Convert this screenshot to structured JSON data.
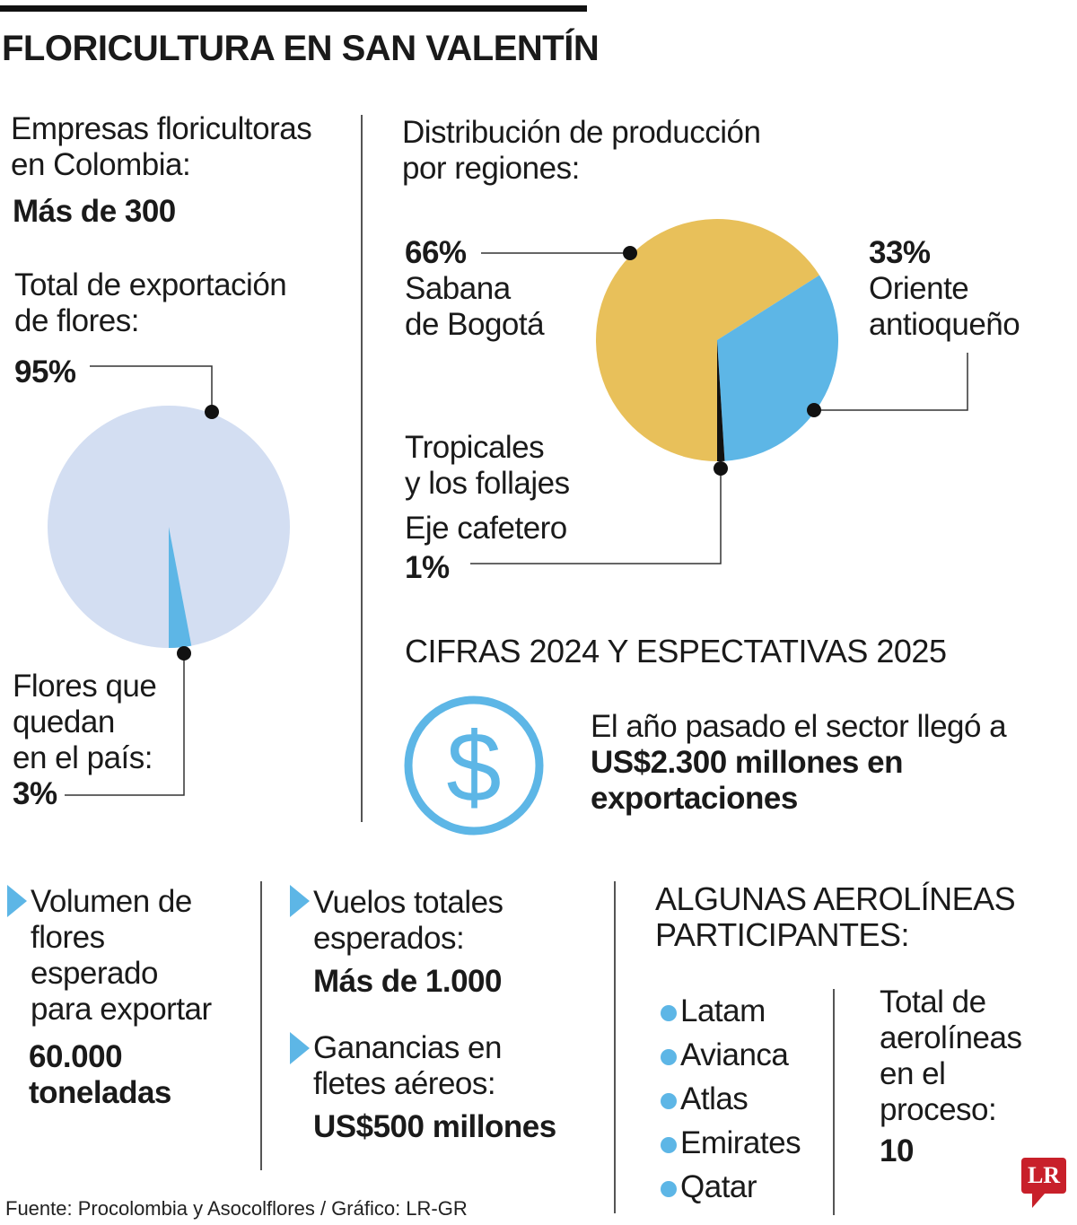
{
  "title": "FLORICULTURA EN SAN VALENTÍN",
  "companies": {
    "label_1": "Empresas floricultoras",
    "label_2": "en Colombia:",
    "value": "Más de 300"
  },
  "exports": {
    "label_1": "Total de exportación",
    "label_2": "de flores:",
    "export_pct": "95%",
    "remain_1": "Flores que",
    "remain_2": "quedan",
    "remain_3": "en el país:",
    "remain_pct": "3%"
  },
  "regions": {
    "label_1": "Distribución de producción",
    "label_2": "por regiones:",
    "sabana_pct": "66%",
    "sabana_1": "Sabana",
    "sabana_2": "de Bogotá",
    "oriente_pct": "33%",
    "oriente_1": "Oriente",
    "oriente_2": "antioqueño",
    "trop_1": "Tropicales",
    "trop_2": "y los follajes",
    "eje": "Eje cafetero",
    "eje_pct": "1%"
  },
  "cifras": {
    "heading": "CIFRAS 2024 Y ESPECTATIVAS 2025",
    "line_1": "El año pasado el sector llegó a",
    "line_2": "US$2.300 millones en",
    "line_3": "exportaciones",
    "icon": "dollar-circle-icon"
  },
  "volume": {
    "l1": "Volumen de",
    "l2": "flores",
    "l3": "esperado",
    "l4": "para exportar",
    "v1": "60.000",
    "v2": "toneladas"
  },
  "flights": {
    "l1": "Vuelos totales",
    "l2": "esperados:",
    "value": "Más de 1.000"
  },
  "freight": {
    "l1": "Ganancias en",
    "l2": "fletes aéreos:",
    "value": "US$500 millones"
  },
  "airlines": {
    "heading_1": "ALGUNAS AEROLÍNEAS",
    "heading_2": "PARTICIPANTES:",
    "items": [
      "Latam",
      "Avianca",
      "Atlas",
      "Emirates",
      "Qatar"
    ],
    "total_1": "Total de",
    "total_2": "aerolíneas",
    "total_3": "en el",
    "total_4": "proceso:",
    "total_value": "10"
  },
  "source": "Fuente: Procolombia y Asocolflores / Gráfico: LR-GR",
  "logo": "LR",
  "colors": {
    "light_blue": "#d3def2",
    "blue": "#5db6e6",
    "yellow": "#e8c05a",
    "black": "#111111",
    "logo_red": "#c8202a"
  },
  "chart_data": [
    {
      "type": "pie",
      "title": "Total de exportación de flores",
      "slices": [
        {
          "label": "Exportación",
          "value": 95,
          "color": "#d3def2"
        },
        {
          "label": "Flores que quedan en el país",
          "value": 3,
          "color": "#5db6e6"
        }
      ]
    },
    {
      "type": "pie",
      "title": "Distribución de producción por regiones",
      "slices": [
        {
          "label": "Sabana de Bogotá",
          "value": 66,
          "color": "#e8c05a"
        },
        {
          "label": "Oriente antioqueño",
          "value": 33,
          "color": "#5db6e6"
        },
        {
          "label": "Eje cafetero",
          "value": 1,
          "color": "#111111"
        }
      ]
    }
  ]
}
